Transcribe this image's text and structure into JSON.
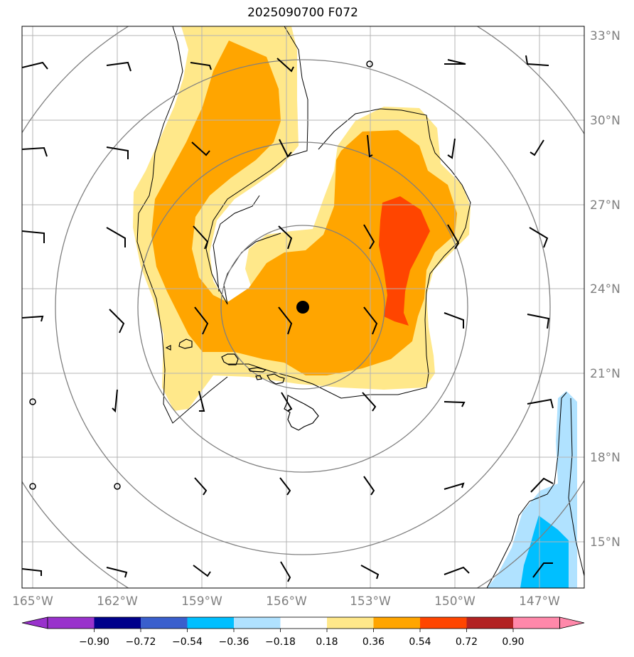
{
  "title": "2025090700 F072",
  "lat_labels": [
    "33°N",
    "30°N",
    "27°N",
    "24°N",
    "21°N",
    "18°N",
    "15°N"
  ],
  "lon_labels": [
    "165°W",
    "162°W",
    "159°W",
    "156°W",
    "153°W",
    "150°W",
    "147°W"
  ],
  "colorbar": {
    "ticks": [
      "−0.90",
      "−0.72",
      "−0.54",
      "−0.36",
      "−0.18",
      "0.18",
      "0.36",
      "0.54",
      "0.72",
      "0.90"
    ],
    "colors": [
      "#9932cc",
      "#00008b",
      "#3a5fcd",
      "#00bfff",
      "#b0e2ff",
      "#ffffff",
      "#ffe88a",
      "#ffa500",
      "#ff4500",
      "#b22222",
      "#ff88aa",
      "#ff88aa"
    ]
  },
  "fill_colors": {
    "light_yellow": "#ffe88a",
    "orange": "#ffa500",
    "red_orange": "#ff4500",
    "light_blue": "#b0e2ff",
    "cyan": "#00bfff"
  },
  "storm_center": "storm-center-marker"
}
